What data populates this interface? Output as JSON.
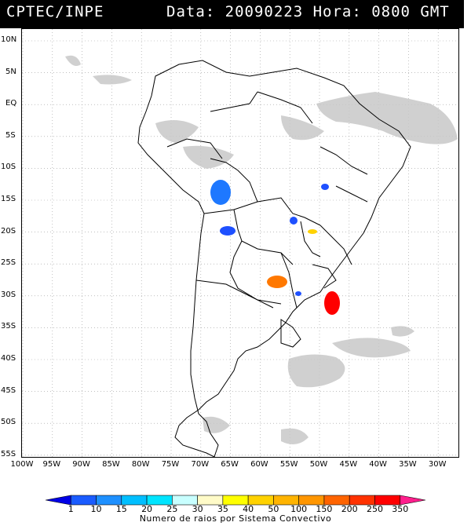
{
  "header": {
    "source": "CPTEC/INPE",
    "datetime": "Data: 20090223 Hora: 0800 GMT"
  },
  "lat_labels": [
    "10N",
    "5N",
    "EQ",
    "5S",
    "10S",
    "15S",
    "20S",
    "25S",
    "30S",
    "35S",
    "40S",
    "45S",
    "50S",
    "55S"
  ],
  "lon_labels": [
    "100W",
    "95W",
    "90W",
    "85W",
    "80W",
    "75W",
    "70W",
    "65W",
    "60W",
    "55W",
    "50W",
    "45W",
    "40W",
    "35W",
    "30W"
  ],
  "legend": {
    "values": [
      "1",
      "10",
      "15",
      "20",
      "25",
      "30",
      "35",
      "40",
      "50",
      "100",
      "150",
      "200",
      "250",
      "350"
    ],
    "caption": "Numero de raios por Sistema Convectivo",
    "colors": [
      "#0000e6",
      "#1a5cff",
      "#1e90ff",
      "#00bfff",
      "#00e5ff",
      "#c8ffff",
      "#fffbc8",
      "#ffff00",
      "#ffd200",
      "#ffb400",
      "#ff9600",
      "#ff6400",
      "#ff3200",
      "#ff0000",
      "#ff1e8c"
    ]
  },
  "systems": [
    {
      "color": "#1e78ff",
      "value": "15"
    },
    {
      "color": "#1e50ff",
      "value": "10"
    },
    {
      "color": "#1e50ff",
      "value": "10"
    },
    {
      "color": "#1e50ff",
      "value": "10"
    },
    {
      "color": "#ffd200",
      "value": "50"
    },
    {
      "color": "#ff7800",
      "value": "200"
    },
    {
      "color": "#ff0000",
      "value": "350"
    },
    {
      "color": "#1e50ff",
      "value": "10"
    }
  ]
}
